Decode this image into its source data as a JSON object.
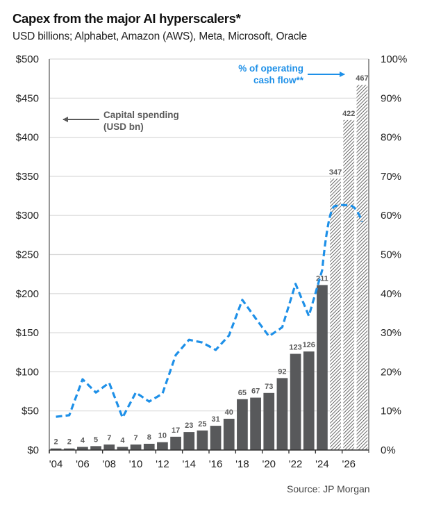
{
  "chart_data": {
    "type": "bar",
    "title": "Capex from the major AI hyperscalers*",
    "subtitle": "USD billions; Alphabet, Amazon (AWS), Meta, Microsoft, Oracle",
    "source": "Source: JP Morgan",
    "x": [
      2004,
      2005,
      2006,
      2007,
      2008,
      2009,
      2010,
      2011,
      2012,
      2013,
      2014,
      2015,
      2016,
      2017,
      2018,
      2019,
      2020,
      2021,
      2022,
      2023,
      2024,
      2025,
      2026,
      2027
    ],
    "x_tick_labels": [
      "'04",
      "'06",
      "'08",
      "'10",
      "'12",
      "'14",
      "'16",
      "'18",
      "'20",
      "'22",
      "'24",
      "'26"
    ],
    "x_tick_years": [
      2004,
      2006,
      2008,
      2010,
      2012,
      2014,
      2016,
      2018,
      2020,
      2022,
      2024,
      2026
    ],
    "series": [
      {
        "name": "Capital spending (USD bn)",
        "type": "bar",
        "axis": "left",
        "color": "#58595b",
        "values": [
          2,
          2,
          4,
          5,
          7,
          4,
          7,
          8,
          10,
          17,
          23,
          25,
          31,
          40,
          65,
          67,
          73,
          92,
          123,
          126,
          211,
          347,
          422,
          467
        ],
        "labels": [
          "2",
          "2",
          "4",
          "5",
          "7",
          "4",
          "7",
          "8",
          "10",
          "17",
          "23",
          "25",
          "31",
          "40",
          "65",
          "67",
          "73",
          "92",
          "123",
          "126",
          "211",
          "347",
          "422",
          "467"
        ],
        "forecast_from": 2025,
        "forecast_style": "hatched"
      },
      {
        "name": "% of operating cash flow**",
        "type": "line",
        "axis": "right",
        "color": "#1e90e8",
        "style": "dashed",
        "values": [
          8.5,
          8.9,
          18.1,
          14.7,
          17.2,
          8.3,
          14.7,
          12.4,
          14.4,
          24.3,
          28.2,
          27.5,
          25.6,
          29.3,
          38.4,
          33.7,
          29.1,
          31.4,
          42.5,
          34.3,
          46.0,
          62.4,
          62.5,
          58.4
        ]
      }
    ],
    "y_left": {
      "label": "",
      "ylim": [
        0,
        500
      ],
      "ticks": [
        "$0",
        "$50",
        "$100",
        "$150",
        "$200",
        "$250",
        "$300",
        "$350",
        "$400",
        "$450",
        "$500"
      ]
    },
    "y_right": {
      "label": "",
      "ylim": [
        0,
        100
      ],
      "ticks": [
        "0%",
        "10%",
        "20%",
        "30%",
        "40%",
        "50%",
        "60%",
        "70%",
        "80%",
        "90%",
        "100%"
      ]
    },
    "grid": true,
    "annotations": [
      {
        "text_lines": [
          "Capital spending",
          "(USD bn)"
        ],
        "arrow": "left",
        "color": "#5a5a5a",
        "refers_to": "left axis"
      },
      {
        "text_lines": [
          "% of operating",
          "cash flow**"
        ],
        "arrow": "right",
        "color": "#1e90e8",
        "refers_to": "right axis"
      }
    ]
  }
}
